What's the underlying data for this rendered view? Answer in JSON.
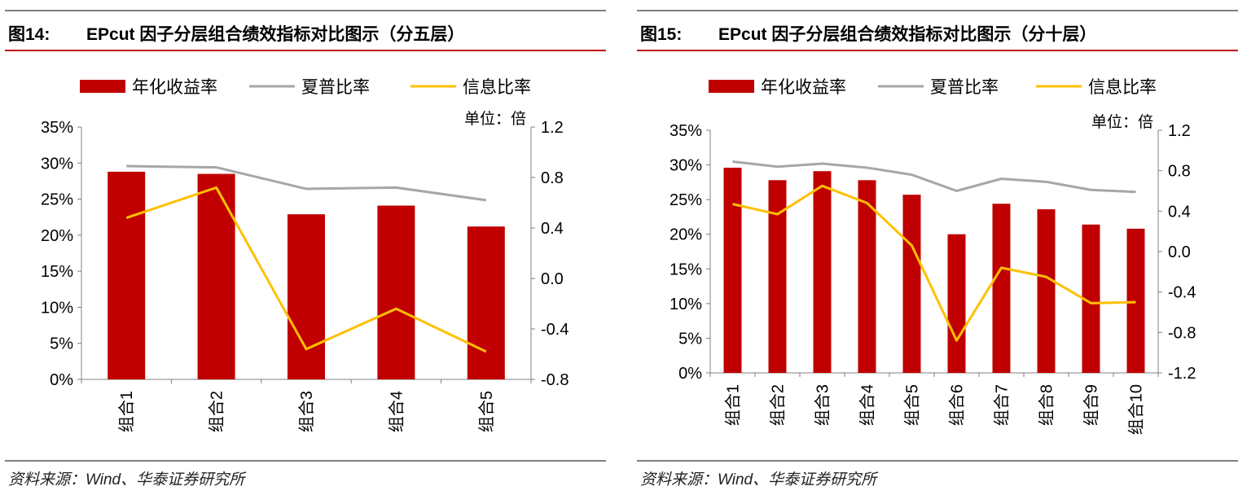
{
  "panels": [
    {
      "fig_num": "图14:",
      "title": "EPcut 因子分层组合绩效指标对比图示（分五层）",
      "source": "资料来源：Wind、华泰证券研究所",
      "unit_label": "单位：倍",
      "legend": [
        {
          "label": "年化收益率",
          "color": "#c00000",
          "kind": "bar"
        },
        {
          "label": "夏普比率",
          "color": "#a6a6a6",
          "kind": "line"
        },
        {
          "label": "信息比率",
          "color": "#ffc000",
          "kind": "line"
        }
      ],
      "left_ticks": [
        "35%",
        "30%",
        "25%",
        "20%",
        "15%",
        "10%",
        "5%",
        "0%"
      ],
      "right_ticks": [
        "1.2",
        "0.8",
        "0.4",
        "0.0",
        "-0.4",
        "-0.8"
      ]
    },
    {
      "fig_num": "图15:",
      "title": "EPcut 因子分层组合绩效指标对比图示（分十层）",
      "source": "资料来源：Wind、华泰证券研究所",
      "unit_label": "单位：倍",
      "legend": [
        {
          "label": "年化收益率",
          "color": "#c00000",
          "kind": "bar"
        },
        {
          "label": "夏普比率",
          "color": "#a6a6a6",
          "kind": "line"
        },
        {
          "label": "信息比率",
          "color": "#ffc000",
          "kind": "line"
        }
      ],
      "left_ticks": [
        "35%",
        "30%",
        "25%",
        "20%",
        "15%",
        "10%",
        "5%",
        "0%"
      ],
      "right_ticks": [
        "1.2",
        "0.8",
        "0.4",
        "0.0",
        "-0.4",
        "-0.8",
        "-1.2"
      ]
    }
  ],
  "chart_data": [
    {
      "type": "bar",
      "categories": [
        "组合1",
        "组合2",
        "组合3",
        "组合4",
        "组合5"
      ],
      "left_axis": {
        "min": 0,
        "max": 35,
        "step": 5,
        "unit": "%"
      },
      "right_axis": {
        "min": -0.8,
        "max": 1.2,
        "step": 0.4
      },
      "series": [
        {
          "name": "年化收益率",
          "type": "bar",
          "axis": "left",
          "color": "#c00000",
          "values": [
            28.8,
            28.5,
            22.9,
            24.1,
            21.2
          ]
        },
        {
          "name": "夏普比率",
          "type": "line",
          "axis": "right",
          "color": "#a6a6a6",
          "values": [
            0.89,
            0.88,
            0.71,
            0.72,
            0.62
          ]
        },
        {
          "name": "信息比率",
          "type": "line",
          "axis": "right",
          "color": "#ffc000",
          "values": [
            0.48,
            0.72,
            -0.56,
            -0.24,
            -0.58
          ]
        }
      ],
      "legend_position": "top"
    },
    {
      "type": "bar",
      "categories": [
        "组合1",
        "组合2",
        "组合3",
        "组合4",
        "组合5",
        "组合6",
        "组合7",
        "组合8",
        "组合9",
        "组合10"
      ],
      "left_axis": {
        "min": 0,
        "max": 35,
        "step": 5,
        "unit": "%"
      },
      "right_axis": {
        "min": -1.2,
        "max": 1.2,
        "step": 0.4
      },
      "series": [
        {
          "name": "年化收益率",
          "type": "bar",
          "axis": "left",
          "color": "#c00000",
          "values": [
            29.6,
            27.8,
            29.1,
            27.8,
            25.7,
            20.0,
            24.4,
            23.6,
            21.4,
            20.8
          ]
        },
        {
          "name": "夏普比率",
          "type": "line",
          "axis": "right",
          "color": "#a6a6a6",
          "values": [
            0.89,
            0.84,
            0.87,
            0.83,
            0.76,
            0.6,
            0.72,
            0.69,
            0.61,
            0.59
          ]
        },
        {
          "name": "信息比率",
          "type": "line",
          "axis": "right",
          "color": "#ffc000",
          "values": [
            0.47,
            0.37,
            0.65,
            0.48,
            0.06,
            -0.88,
            -0.16,
            -0.25,
            -0.51,
            -0.5
          ]
        }
      ],
      "legend_position": "top"
    }
  ]
}
